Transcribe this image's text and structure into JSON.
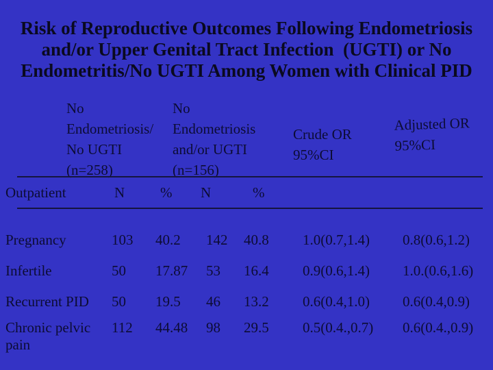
{
  "theme": {
    "bg_color": "#3433c5",
    "text_color": "#0c0c34",
    "title_color": "#0a0a20",
    "rule_color": "#15153e"
  },
  "slide": {
    "title_lines": [
      "Risk of Reproductive Outcomes Following Endometriosis",
      "and/or Upper Genital Tract Infection  (UGTI) or No",
      "Endometritis/No UGTI Among Women with Clinical PID"
    ]
  },
  "table": {
    "col_headers": {
      "group1_lines": [
        "No",
        "Endometriosis/",
        "No UGTI",
        "(n=258)"
      ],
      "group2_lines": [
        "No",
        "Endometriosis",
        "and/or UGTI",
        "(n=156)"
      ],
      "crude_lines": [
        "Crude OR",
        "95%CI"
      ],
      "adjusted_lines": [
        "Adjusted OR",
        "95%CI"
      ]
    },
    "subheader": {
      "label": "Outpatient",
      "n1": "N",
      "p1": "%",
      "n2": "N",
      "p2": "%"
    },
    "rows": [
      {
        "label": "Pregnancy",
        "n1": "103",
        "p1": "40.2",
        "n2": "142",
        "p2": "40.8",
        "crude": "1.0(0.7,1.4)",
        "adjusted": "0.8(0.6,1.2)"
      },
      {
        "label": "Infertile",
        "n1": "50",
        "p1": "17.87",
        "n2": "53",
        "p2": "16.4",
        "crude": "0.9(0.6,1.4)",
        "adjusted": "1.0.(0.6,1.6)"
      },
      {
        "label": "Recurrent PID",
        "n1": "50",
        "p1": "19.5",
        "n2": "46",
        "p2": "13.2",
        "crude": "0.6(0.4,1.0)",
        "adjusted": "0.6(0.4,0.9)"
      },
      {
        "label": "Chronic pelvic pain",
        "n1": "112",
        "p1": "44.48",
        "n2": "98",
        "p2": "29.5",
        "crude": "0.5(0.4.,0.7)",
        "adjusted": "0.6(0.4.,0.9)"
      }
    ]
  }
}
